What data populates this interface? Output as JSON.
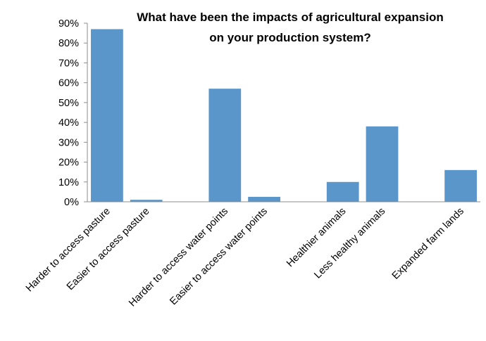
{
  "chart_data": {
    "type": "bar",
    "title": "What have been the impacts of agricultural expansion on your production system?",
    "title_lines": [
      "What have been the impacts of agricultural expansion",
      "on your production system?"
    ],
    "categories": [
      "Harder to access pasture",
      "Easier to access pasture",
      "",
      "Harder to access water points",
      "Easier to access water points",
      "",
      "Healthier animals",
      "Less healthy animals",
      "",
      "Expanded farm lands"
    ],
    "values": [
      87,
      1,
      null,
      57,
      2.5,
      null,
      10,
      38,
      null,
      16
    ],
    "ylim": [
      0,
      90
    ],
    "yticks": [
      "0%",
      "10%",
      "20%",
      "30%",
      "40%",
      "50%",
      "60%",
      "70%",
      "80%",
      "90%"
    ],
    "xlabel": "",
    "ylabel": "",
    "grid": false,
    "legend": "none",
    "bar_color": "#5b96cb"
  }
}
